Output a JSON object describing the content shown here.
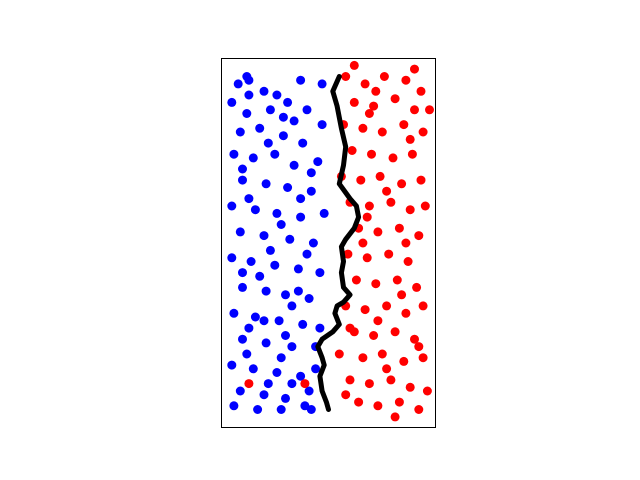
{
  "chart_data": {
    "type": "scatter",
    "title": "",
    "xlabel": "",
    "ylabel": "",
    "xlim": [
      0,
      1
    ],
    "ylim": [
      0,
      1
    ],
    "axes_ticks_visible": false,
    "grid": false,
    "legend": "none",
    "colors": {
      "blue": "#0000ff",
      "red": "#ff0000",
      "boundary": "#000000"
    },
    "series": [
      {
        "color": "blue",
        "points": [
          [
            0.08,
            0.93
          ],
          [
            0.13,
            0.94
          ],
          [
            0.2,
            0.91
          ],
          [
            0.26,
            0.9
          ],
          [
            0.37,
            0.94
          ],
          [
            0.47,
            0.93
          ],
          [
            0.05,
            0.88
          ],
          [
            0.12,
            0.85
          ],
          [
            0.23,
            0.86
          ],
          [
            0.31,
            0.88
          ],
          [
            0.4,
            0.86
          ],
          [
            0.09,
            0.8
          ],
          [
            0.18,
            0.81
          ],
          [
            0.29,
            0.79
          ],
          [
            0.38,
            0.77
          ],
          [
            0.47,
            0.82
          ],
          [
            0.06,
            0.74
          ],
          [
            0.15,
            0.73
          ],
          [
            0.25,
            0.74
          ],
          [
            0.34,
            0.71
          ],
          [
            0.45,
            0.72
          ],
          [
            0.1,
            0.67
          ],
          [
            0.21,
            0.66
          ],
          [
            0.31,
            0.65
          ],
          [
            0.42,
            0.64
          ],
          [
            0.05,
            0.6
          ],
          [
            0.16,
            0.59
          ],
          [
            0.26,
            0.58
          ],
          [
            0.37,
            0.57
          ],
          [
            0.48,
            0.58
          ],
          [
            0.09,
            0.53
          ],
          [
            0.2,
            0.52
          ],
          [
            0.32,
            0.51
          ],
          [
            0.43,
            0.5
          ],
          [
            0.05,
            0.46
          ],
          [
            0.14,
            0.45
          ],
          [
            0.25,
            0.44
          ],
          [
            0.36,
            0.43
          ],
          [
            0.46,
            0.42
          ],
          [
            0.1,
            0.38
          ],
          [
            0.21,
            0.37
          ],
          [
            0.3,
            0.36
          ],
          [
            0.41,
            0.35
          ],
          [
            0.06,
            0.31
          ],
          [
            0.16,
            0.3
          ],
          [
            0.27,
            0.29
          ],
          [
            0.38,
            0.28
          ],
          [
            0.1,
            0.24
          ],
          [
            0.21,
            0.23
          ],
          [
            0.33,
            0.22
          ],
          [
            0.44,
            0.22
          ],
          [
            0.05,
            0.17
          ],
          [
            0.15,
            0.16
          ],
          [
            0.26,
            0.15
          ],
          [
            0.37,
            0.14
          ],
          [
            0.09,
            0.1
          ],
          [
            0.2,
            0.09
          ],
          [
            0.3,
            0.08
          ],
          [
            0.41,
            0.1
          ],
          [
            0.06,
            0.06
          ],
          [
            0.17,
            0.05
          ],
          [
            0.28,
            0.05
          ],
          [
            0.39,
            0.06
          ],
          [
            0.13,
            0.9
          ],
          [
            0.34,
            0.83
          ],
          [
            0.22,
            0.77
          ],
          [
            0.42,
            0.69
          ],
          [
            0.13,
            0.62
          ],
          [
            0.28,
            0.55
          ],
          [
            0.4,
            0.47
          ],
          [
            0.18,
            0.41
          ],
          [
            0.33,
            0.33
          ],
          [
            0.13,
            0.27
          ],
          [
            0.28,
            0.19
          ],
          [
            0.44,
            0.16
          ],
          [
            0.22,
            0.12
          ],
          [
            0.33,
            0.12
          ],
          [
            0.12,
            0.95
          ],
          [
            0.29,
            0.84
          ],
          [
            0.1,
            0.7
          ],
          [
            0.37,
            0.62
          ],
          [
            0.23,
            0.48
          ],
          [
            0.1,
            0.42
          ],
          [
            0.36,
            0.37
          ],
          [
            0.2,
            0.29
          ],
          [
            0.12,
            0.2
          ],
          [
            0.3,
            0.25
          ],
          [
            0.46,
            0.27
          ],
          [
            0.42,
            0.05
          ]
        ]
      },
      {
        "color": "red",
        "points": [
          [
            0.58,
            0.95
          ],
          [
            0.67,
            0.93
          ],
          [
            0.76,
            0.95
          ],
          [
            0.86,
            0.94
          ],
          [
            0.93,
            0.91
          ],
          [
            0.62,
            0.88
          ],
          [
            0.71,
            0.87
          ],
          [
            0.81,
            0.89
          ],
          [
            0.9,
            0.86
          ],
          [
            0.57,
            0.82
          ],
          [
            0.66,
            0.81
          ],
          [
            0.75,
            0.8
          ],
          [
            0.85,
            0.82
          ],
          [
            0.94,
            0.8
          ],
          [
            0.61,
            0.75
          ],
          [
            0.7,
            0.74
          ],
          [
            0.8,
            0.73
          ],
          [
            0.89,
            0.74
          ],
          [
            0.56,
            0.68
          ],
          [
            0.65,
            0.67
          ],
          [
            0.74,
            0.68
          ],
          [
            0.84,
            0.66
          ],
          [
            0.93,
            0.67
          ],
          [
            0.6,
            0.61
          ],
          [
            0.69,
            0.6
          ],
          [
            0.79,
            0.61
          ],
          [
            0.88,
            0.59
          ],
          [
            0.64,
            0.54
          ],
          [
            0.73,
            0.53
          ],
          [
            0.83,
            0.54
          ],
          [
            0.92,
            0.52
          ],
          [
            0.59,
            0.47
          ],
          [
            0.68,
            0.46
          ],
          [
            0.78,
            0.47
          ],
          [
            0.87,
            0.45
          ],
          [
            0.63,
            0.4
          ],
          [
            0.72,
            0.39
          ],
          [
            0.82,
            0.4
          ],
          [
            0.91,
            0.38
          ],
          [
            0.58,
            0.33
          ],
          [
            0.67,
            0.32
          ],
          [
            0.77,
            0.33
          ],
          [
            0.86,
            0.31
          ],
          [
            0.94,
            0.33
          ],
          [
            0.62,
            0.26
          ],
          [
            0.71,
            0.25
          ],
          [
            0.81,
            0.26
          ],
          [
            0.9,
            0.24
          ],
          [
            0.55,
            0.2
          ],
          [
            0.66,
            0.19
          ],
          [
            0.75,
            0.2
          ],
          [
            0.85,
            0.18
          ],
          [
            0.94,
            0.19
          ],
          [
            0.6,
            0.13
          ],
          [
            0.69,
            0.12
          ],
          [
            0.79,
            0.13
          ],
          [
            0.88,
            0.11
          ],
          [
            0.64,
            0.07
          ],
          [
            0.73,
            0.06
          ],
          [
            0.83,
            0.07
          ],
          [
            0.92,
            0.05
          ],
          [
            0.72,
            0.91
          ],
          [
            0.88,
            0.78
          ],
          [
            0.77,
            0.64
          ],
          [
            0.95,
            0.6
          ],
          [
            0.66,
            0.5
          ],
          [
            0.84,
            0.36
          ],
          [
            0.73,
            0.29
          ],
          [
            0.92,
            0.22
          ],
          [
            0.77,
            0.16
          ],
          [
            0.58,
            0.09
          ],
          [
            0.96,
            0.1
          ],
          [
            0.81,
            0.03
          ],
          [
            0.62,
            0.98
          ],
          [
            0.9,
            0.97
          ],
          [
            0.68,
            0.57
          ],
          [
            0.86,
            0.5
          ],
          [
            0.6,
            0.27
          ],
          [
            0.69,
            0.85
          ],
          [
            0.97,
            0.86
          ],
          [
            0.13,
            0.12
          ],
          [
            0.39,
            0.12
          ]
        ]
      }
    ],
    "boundary": [
      [
        0.55,
        0.95
      ],
      [
        0.52,
        0.91
      ],
      [
        0.54,
        0.87
      ],
      [
        0.56,
        0.81
      ],
      [
        0.58,
        0.76
      ],
      [
        0.57,
        0.71
      ],
      [
        0.55,
        0.66
      ],
      [
        0.6,
        0.62
      ],
      [
        0.63,
        0.6
      ],
      [
        0.64,
        0.57
      ],
      [
        0.62,
        0.54
      ],
      [
        0.58,
        0.51
      ],
      [
        0.56,
        0.49
      ],
      [
        0.57,
        0.45
      ],
      [
        0.56,
        0.42
      ],
      [
        0.57,
        0.38
      ],
      [
        0.6,
        0.36
      ],
      [
        0.57,
        0.34
      ],
      [
        0.54,
        0.33
      ],
      [
        0.53,
        0.31
      ],
      [
        0.55,
        0.28
      ],
      [
        0.52,
        0.26
      ],
      [
        0.47,
        0.24
      ],
      [
        0.45,
        0.22
      ],
      [
        0.47,
        0.19
      ],
      [
        0.48,
        0.17
      ],
      [
        0.46,
        0.14
      ],
      [
        0.47,
        0.1
      ],
      [
        0.49,
        0.07
      ],
      [
        0.5,
        0.05
      ]
    ]
  }
}
